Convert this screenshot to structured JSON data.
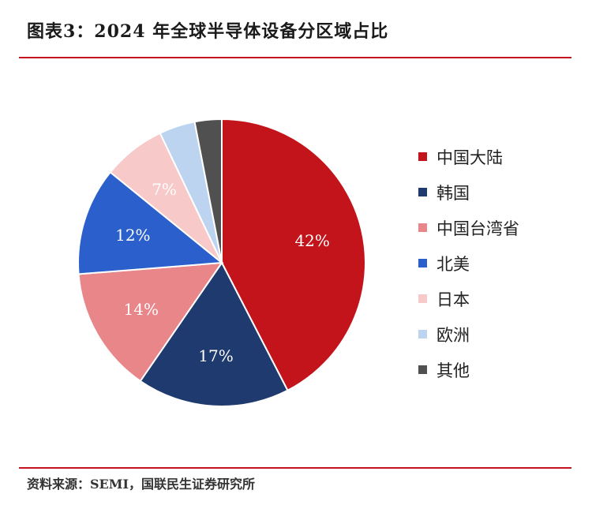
{
  "header": {
    "title": "图表3：2024 年全球半导体设备分区域占比"
  },
  "footer": {
    "source": "资料来源：SEMI，国联民生证券研究所"
  },
  "chart_data": {
    "type": "pie",
    "title": "图表3：2024 年全球半导体设备分区域占比",
    "legend_position": "right",
    "slices": [
      {
        "name": "中国大陆",
        "value": 42,
        "label": "42%",
        "color": "#c3141c",
        "label_color": "#ffffff"
      },
      {
        "name": "韩国",
        "value": 17,
        "label": "17%",
        "color": "#1f3a6e",
        "label_color": "#ffffff"
      },
      {
        "name": "中国台湾省",
        "value": 14,
        "label": "14%",
        "color": "#e8868a",
        "label_color": "#ffffff"
      },
      {
        "name": "北美",
        "value": 12,
        "label": "12%",
        "color": "#2a5fcc",
        "label_color": "#ffffff"
      },
      {
        "name": "日本",
        "value": 7,
        "label": "7%",
        "color": "#f7c9c9",
        "label_color": "#ffffff"
      },
      {
        "name": "欧洲",
        "value": 4,
        "label": "",
        "color": "#bcd4ef",
        "label_color": "#ffffff"
      },
      {
        "name": "其他",
        "value": 3,
        "label": "",
        "color": "#505050",
        "label_color": "#ffffff"
      }
    ]
  }
}
